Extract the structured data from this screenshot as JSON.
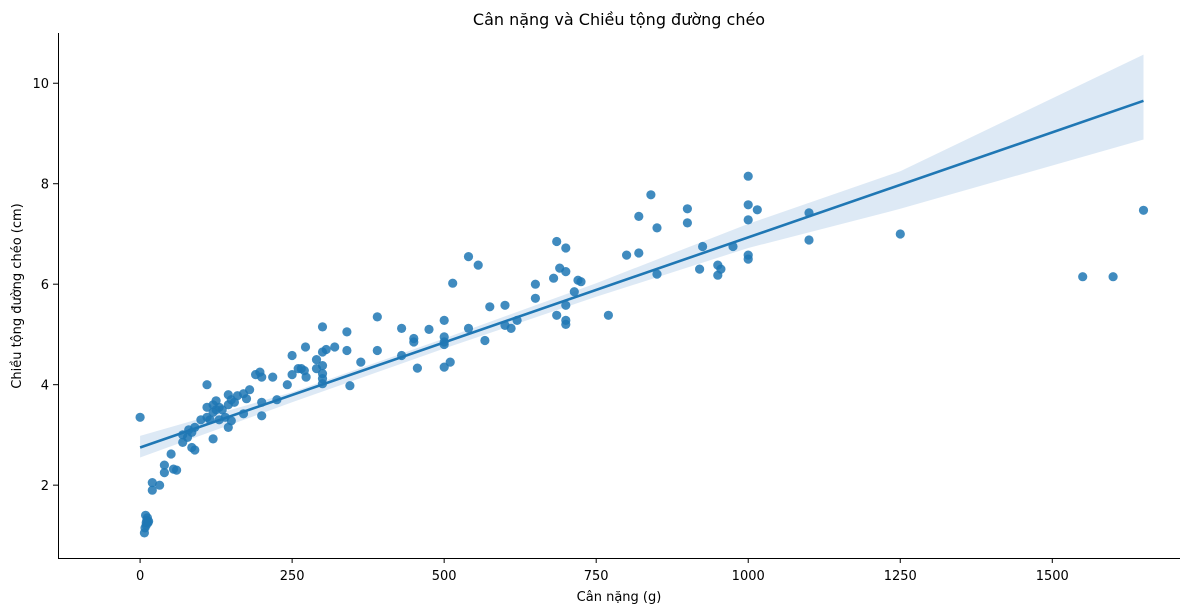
{
  "chart_data": {
    "type": "scatter",
    "title": "Cân nặng và Chiều tộng đường chéo",
    "xlabel": "Cân nặng (g)",
    "ylabel": "Chiều tộng đường chéo (cm)",
    "xlim": [
      -135,
      1710
    ],
    "ylim": [
      0.55,
      11.0
    ],
    "xticks": [
      0,
      250,
      500,
      750,
      1000,
      1250,
      1500
    ],
    "yticks": [
      2,
      4,
      6,
      8,
      10
    ],
    "grid": false,
    "legend": "none",
    "colors": {
      "points": "#1f77b4",
      "regression_line": "#1f77b4",
      "confidence_band": "#c6dbef"
    },
    "points": [
      [
        0,
        3.35
      ],
      [
        7,
        1.05
      ],
      [
        8,
        1.15
      ],
      [
        9,
        1.4
      ],
      [
        10,
        1.2
      ],
      [
        10,
        1.25
      ],
      [
        11,
        1.3
      ],
      [
        12,
        1.35
      ],
      [
        13,
        1.25
      ],
      [
        14,
        1.28
      ],
      [
        20,
        2.05
      ],
      [
        20,
        1.9
      ],
      [
        32,
        2.0
      ],
      [
        40,
        2.25
      ],
      [
        40,
        2.4
      ],
      [
        51,
        2.62
      ],
      [
        55,
        2.32
      ],
      [
        60,
        2.3
      ],
      [
        70,
        2.85
      ],
      [
        70,
        3.0
      ],
      [
        78,
        2.95
      ],
      [
        80,
        3.1
      ],
      [
        85,
        2.75
      ],
      [
        85,
        3.05
      ],
      [
        90,
        3.15
      ],
      [
        90,
        2.7
      ],
      [
        100,
        3.3
      ],
      [
        110,
        4.0
      ],
      [
        110,
        3.55
      ],
      [
        110,
        3.35
      ],
      [
        115,
        3.3
      ],
      [
        120,
        3.45
      ],
      [
        120,
        2.92
      ],
      [
        120,
        3.6
      ],
      [
        125,
        3.5
      ],
      [
        125,
        3.68
      ],
      [
        130,
        3.55
      ],
      [
        130,
        3.3
      ],
      [
        135,
        3.5
      ],
      [
        140,
        3.35
      ],
      [
        145,
        3.15
      ],
      [
        145,
        3.6
      ],
      [
        145,
        3.8
      ],
      [
        150,
        3.7
      ],
      [
        150,
        3.28
      ],
      [
        155,
        3.65
      ],
      [
        160,
        3.78
      ],
      [
        170,
        3.82
      ],
      [
        170,
        3.42
      ],
      [
        175,
        3.72
      ],
      [
        180,
        3.9
      ],
      [
        190,
        4.2
      ],
      [
        197,
        4.25
      ],
      [
        200,
        4.15
      ],
      [
        200,
        3.65
      ],
      [
        200,
        3.38
      ],
      [
        218,
        4.15
      ],
      [
        225,
        3.7
      ],
      [
        242,
        4.0
      ],
      [
        250,
        4.58
      ],
      [
        250,
        4.2
      ],
      [
        260,
        4.32
      ],
      [
        265,
        4.32
      ],
      [
        270,
        4.28
      ],
      [
        272,
        4.75
      ],
      [
        273,
        4.15
      ],
      [
        290,
        4.5
      ],
      [
        290,
        4.32
      ],
      [
        300,
        5.15
      ],
      [
        300,
        4.65
      ],
      [
        300,
        4.38
      ],
      [
        300,
        4.22
      ],
      [
        300,
        4.12
      ],
      [
        300,
        4.02
      ],
      [
        306,
        4.7
      ],
      [
        320,
        4.75
      ],
      [
        340,
        5.05
      ],
      [
        340,
        4.68
      ],
      [
        345,
        3.98
      ],
      [
        363,
        4.45
      ],
      [
        390,
        5.35
      ],
      [
        390,
        4.68
      ],
      [
        430,
        5.12
      ],
      [
        430,
        4.58
      ],
      [
        450,
        4.92
      ],
      [
        450,
        4.85
      ],
      [
        456,
        4.33
      ],
      [
        475,
        5.1
      ],
      [
        500,
        5.28
      ],
      [
        500,
        4.95
      ],
      [
        500,
        4.85
      ],
      [
        500,
        4.8
      ],
      [
        500,
        4.35
      ],
      [
        510,
        4.45
      ],
      [
        514,
        6.02
      ],
      [
        540,
        6.55
      ],
      [
        540,
        5.12
      ],
      [
        556,
        6.38
      ],
      [
        567,
        4.88
      ],
      [
        575,
        5.55
      ],
      [
        600,
        5.58
      ],
      [
        600,
        5.18
      ],
      [
        610,
        5.12
      ],
      [
        620,
        5.28
      ],
      [
        650,
        6.0
      ],
      [
        650,
        5.72
      ],
      [
        680,
        6.12
      ],
      [
        685,
        6.85
      ],
      [
        685,
        5.38
      ],
      [
        690,
        6.32
      ],
      [
        700,
        6.72
      ],
      [
        700,
        6.25
      ],
      [
        700,
        5.58
      ],
      [
        700,
        5.28
      ],
      [
        700,
        5.2
      ],
      [
        714,
        5.85
      ],
      [
        720,
        6.08
      ],
      [
        725,
        6.05
      ],
      [
        770,
        5.38
      ],
      [
        800,
        6.58
      ],
      [
        820,
        7.35
      ],
      [
        820,
        6.62
      ],
      [
        840,
        7.78
      ],
      [
        850,
        7.12
      ],
      [
        850,
        6.2
      ],
      [
        900,
        7.5
      ],
      [
        900,
        7.22
      ],
      [
        920,
        6.3
      ],
      [
        925,
        6.75
      ],
      [
        950,
        6.38
      ],
      [
        950,
        6.18
      ],
      [
        955,
        6.3
      ],
      [
        975,
        6.75
      ],
      [
        1000,
        8.15
      ],
      [
        1000,
        7.58
      ],
      [
        1000,
        7.28
      ],
      [
        1000,
        6.58
      ],
      [
        1000,
        6.5
      ],
      [
        1015,
        7.48
      ],
      [
        1100,
        7.42
      ],
      [
        1100,
        6.88
      ],
      [
        1250,
        7.0
      ],
      [
        1550,
        6.15
      ],
      [
        1600,
        6.15
      ],
      [
        1650,
        7.47
      ]
    ],
    "regression_line": {
      "x": [
        0,
        1650
      ],
      "y": [
        2.75,
        9.65
      ]
    },
    "confidence_band": {
      "x": [
        0,
        250,
        500,
        750,
        1000,
        1250,
        1650
      ],
      "lower": [
        2.55,
        3.65,
        4.72,
        5.75,
        6.72,
        7.5,
        8.88
      ],
      "upper": [
        2.98,
        3.85,
        4.92,
        6.02,
        7.2,
        8.25,
        10.57
      ]
    }
  }
}
